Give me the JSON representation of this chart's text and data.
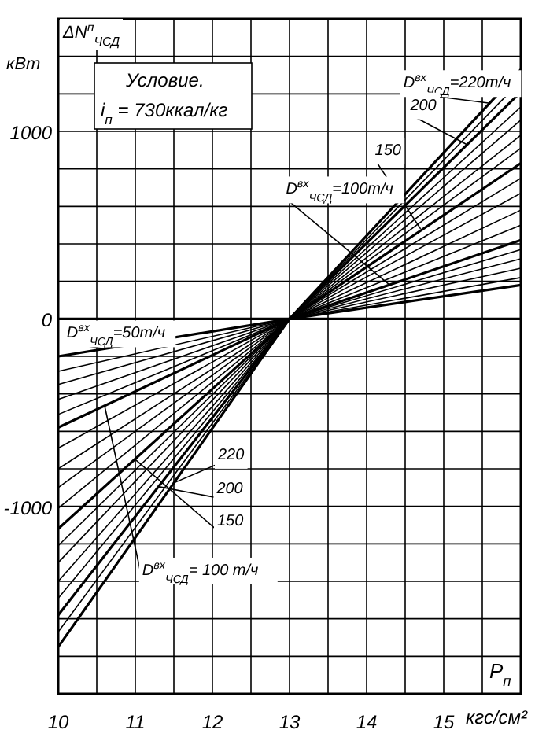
{
  "chart_data": {
    "type": "line",
    "xlabel": "P$_{п}$",
    "ylabel": "кВт",
    "x": [
      10,
      13,
      16
    ],
    "xlim": [
      10,
      16
    ],
    "ylim": [
      -2000,
      1600
    ],
    "xticks": [
      10,
      {
        "value": 10.5,
        "label": null
      },
      11,
      {
        "value": 11.5,
        "label": null
      },
      12,
      {
        "value": 12.5,
        "label": null
      },
      13,
      {
        "value": 13.5,
        "label": null
      },
      14,
      {
        "value": 14.5,
        "label": null
      },
      15,
      {
        "value": 15.5,
        "label": null
      }
    ],
    "yticks": [
      {
        "value": -1800,
        "label": null
      },
      {
        "value": -1600,
        "label": null
      },
      {
        "value": -1400,
        "label": null
      },
      {
        "value": -1200,
        "label": null
      },
      {
        "value": -1000,
        "label": "-1000"
      },
      {
        "value": -800,
        "label": null
      },
      {
        "value": -600,
        "label": null
      },
      {
        "value": -400,
        "label": null
      },
      {
        "value": -200,
        "label": null
      },
      0,
      {
        "value": 200,
        "label": null
      },
      {
        "value": 400,
        "label": null
      },
      {
        "value": 600,
        "label": null
      },
      {
        "value": 800,
        "label": null
      },
      1000,
      {
        "value": 1200,
        "label": null
      },
      {
        "value": 1400,
        "label": null
      }
    ],
    "grid": true,
    "marker": "none",
    "line_style": "solid",
    "series": [
      {
        "color": "#000000",
        "values": [
          -200,
          0,
          180
        ]
      },
      {
        "color": "#000000",
        "values": [
          -280,
          0,
          220
        ]
      },
      {
        "color": "#000000",
        "values": [
          -350,
          0,
          270
        ]
      },
      {
        "color": "#000000",
        "values": [
          -430,
          0,
          320
        ]
      },
      {
        "color": "#000000",
        "values": [
          -510,
          0,
          370
        ]
      },
      {
        "color": "#000000",
        "values": [
          -580,
          0,
          420
        ]
      },
      {
        "color": "#000000",
        "values": [
          -690,
          0,
          500
        ]
      },
      {
        "color": "#000000",
        "values": [
          -800,
          0,
          580
        ]
      },
      {
        "color": "#000000",
        "values": [
          -900,
          0,
          670
        ]
      },
      {
        "color": "#000000",
        "values": [
          -1010,
          0,
          750
        ]
      },
      {
        "color": "#000000",
        "values": [
          -1120,
          0,
          830
        ]
      },
      {
        "color": "#000000",
        "values": [
          -1210,
          0,
          910
        ]
      },
      {
        "color": "#000000",
        "values": [
          -1300,
          0,
          980
        ]
      },
      {
        "color": "#000000",
        "values": [
          -1400,
          0,
          1060
        ]
      },
      {
        "color": "#000000",
        "values": [
          -1490,
          0,
          1130
        ]
      },
      {
        "color": "#000000",
        "values": [
          -1580,
          0,
          1210
        ]
      },
      {
        "color": "#000000",
        "values": [
          -1670,
          0,
          1270
        ]
      },
      {
        "color": "#000000",
        "values": [
          -1750,
          0,
          1330
        ]
      }
    ],
    "annotations": [
      "ΔN$^{п}$$_{ЧСД}$",
      "Условие.",
      "i$_{п}$ = 730ккал/кг",
      "кгс/см²",
      {
        "text": "D$^{вх}$$_{ЧСД}$=220т/ч",
        "x": 15.6,
        "y": 1150
      },
      {
        "text": "200",
        "x": 15.3,
        "y": 930
      },
      {
        "text": "150",
        "x": 14.7,
        "y": 480
      },
      {
        "text": "D$^{вх}$$_{ЧСД}$=100т/ч",
        "x": 14.3,
        "y": 180
      },
      {
        "text": "D$^{вх}$$_{ЧСД}$=50т/ч",
        "x": 10.6,
        "y": -160
      },
      {
        "text": "220",
        "x": 11.5,
        "y": -875
      },
      {
        "text": "200",
        "x": 11.3,
        "y": -895
      },
      {
        "text": "150",
        "x": 11.0,
        "y": -750
      },
      {
        "text": "D$^{вх}$$_{ЧСД}$= 100 т/ч",
        "x": 10.6,
        "y": -460
      }
    ]
  }
}
